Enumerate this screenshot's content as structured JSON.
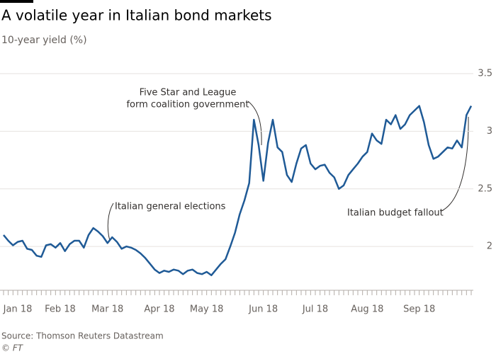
{
  "chart_data": {
    "type": "line",
    "title": "A volatile year in Italian bond markets",
    "subtitle": "10-year yield (%)",
    "categories": [
      null,
      null,
      null,
      "Jan 18",
      null,
      null,
      null,
      null,
      null,
      null,
      null,
      null,
      "Feb 18",
      null,
      null,
      null,
      null,
      null,
      null,
      null,
      null,
      null,
      "Mar 18",
      null,
      null,
      null,
      null,
      null,
      null,
      null,
      null,
      null,
      null,
      "Apr 18",
      null,
      null,
      null,
      null,
      null,
      null,
      null,
      null,
      null,
      "May 18",
      null,
      null,
      null,
      null,
      null,
      null,
      null,
      null,
      null,
      null,
      null,
      "Jun 18",
      null,
      null,
      null,
      null,
      null,
      null,
      null,
      null,
      null,
      null,
      "Jul 18",
      null,
      null,
      null,
      null,
      null,
      null,
      null,
      null,
      null,
      null,
      "Aug 18",
      null,
      null,
      null,
      null,
      null,
      null,
      null,
      null,
      null,
      null,
      "Sep 18",
      null,
      null,
      null,
      null,
      null,
      null,
      null,
      null,
      null,
      null,
      null
    ],
    "series": [
      {
        "name": "10-year yield",
        "color": "#1f5a96",
        "values": [
          2.1,
          2.05,
          2.01,
          2.04,
          2.05,
          1.98,
          1.97,
          1.92,
          1.91,
          2.01,
          2.02,
          1.99,
          2.03,
          1.96,
          2.02,
          2.05,
          2.05,
          1.99,
          2.1,
          2.16,
          2.13,
          2.09,
          2.03,
          2.08,
          2.04,
          1.98,
          2.0,
          1.99,
          1.97,
          1.94,
          1.9,
          1.85,
          1.8,
          1.77,
          1.79,
          1.78,
          1.8,
          1.79,
          1.76,
          1.79,
          1.8,
          1.77,
          1.76,
          1.78,
          1.75,
          1.8,
          1.85,
          1.89,
          2.0,
          2.12,
          2.28,
          2.4,
          2.55,
          3.1,
          2.88,
          2.57,
          2.9,
          3.1,
          2.86,
          2.82,
          2.62,
          2.56,
          2.72,
          2.85,
          2.88,
          2.72,
          2.67,
          2.7,
          2.71,
          2.64,
          2.6,
          2.5,
          2.53,
          2.62,
          2.67,
          2.72,
          2.78,
          2.82,
          2.98,
          2.92,
          2.89,
          3.1,
          3.06,
          3.14,
          3.02,
          3.06,
          3.14,
          3.18,
          3.22,
          3.08,
          2.88,
          2.76,
          2.78,
          2.82,
          2.86,
          2.85,
          2.92,
          2.86,
          3.14,
          3.22
        ]
      }
    ],
    "ylim": [
      1.62,
      3.5
    ],
    "yticks": [
      2,
      2.5,
      3,
      3.5
    ],
    "grid": true,
    "annotations": [
      {
        "text": [
          "Italian general elections"
        ],
        "index": 22
      },
      {
        "text": [
          "Five Star and League",
          "form coalition government"
        ],
        "index": 55
      },
      {
        "text": [
          "Italian budget fallout"
        ],
        "index": 99
      }
    ],
    "source": "Source: Thomson Reuters Datastream",
    "credit": "© FT"
  }
}
